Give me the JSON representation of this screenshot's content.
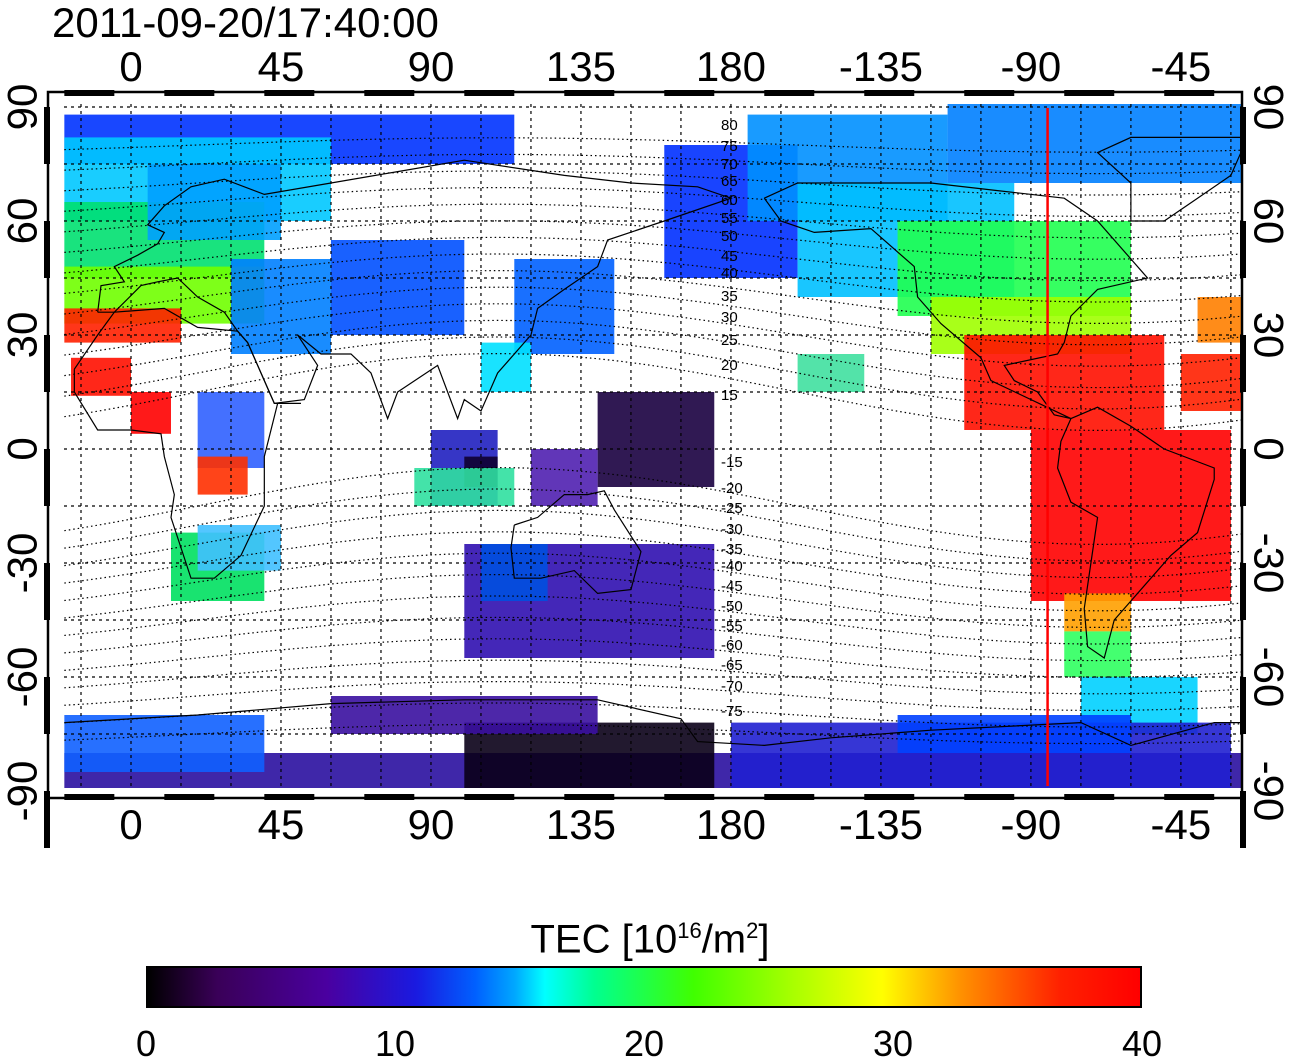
{
  "title": "2011-09-20/17:40:00",
  "axes": {
    "lon_ticks": [
      "0",
      "45",
      "90",
      "135",
      "180",
      "-135",
      "-90",
      "-45"
    ],
    "lon_values": [
      0,
      45,
      90,
      135,
      180,
      225,
      270,
      315
    ],
    "lat_ticks": [
      "90",
      "60",
      "30",
      "0",
      "-30",
      "-60",
      "-90"
    ],
    "lat_values": [
      90,
      60,
      30,
      0,
      -30,
      -60,
      -90
    ],
    "lon_range": [
      -20,
      335
    ],
    "lat_range": [
      -92,
      92
    ]
  },
  "contour_labels": [
    "80",
    "75",
    "70",
    "65",
    "60",
    "55",
    "50",
    "45",
    "40",
    "35",
    "30",
    "25",
    "20",
    "15",
    "-15",
    "-20",
    "-25",
    "-30",
    "-35",
    "-40",
    "-45",
    "-50",
    "-55",
    "-60",
    "-65",
    "-70",
    "-75"
  ],
  "terminator_lon": 275,
  "colorbar": {
    "title_main": "TEC  [10",
    "title_exp1": "16",
    "title_mid": "/m",
    "title_exp2": "2",
    "title_end": "]",
    "ticks": [
      "0",
      "10",
      "20",
      "30",
      "40"
    ],
    "tick_values": [
      0,
      10,
      20,
      30,
      40
    ],
    "range": [
      0,
      40
    ]
  },
  "colors": {
    "red_line": "#ff0000",
    "low": "#000000",
    "high": "#ff0000"
  }
}
